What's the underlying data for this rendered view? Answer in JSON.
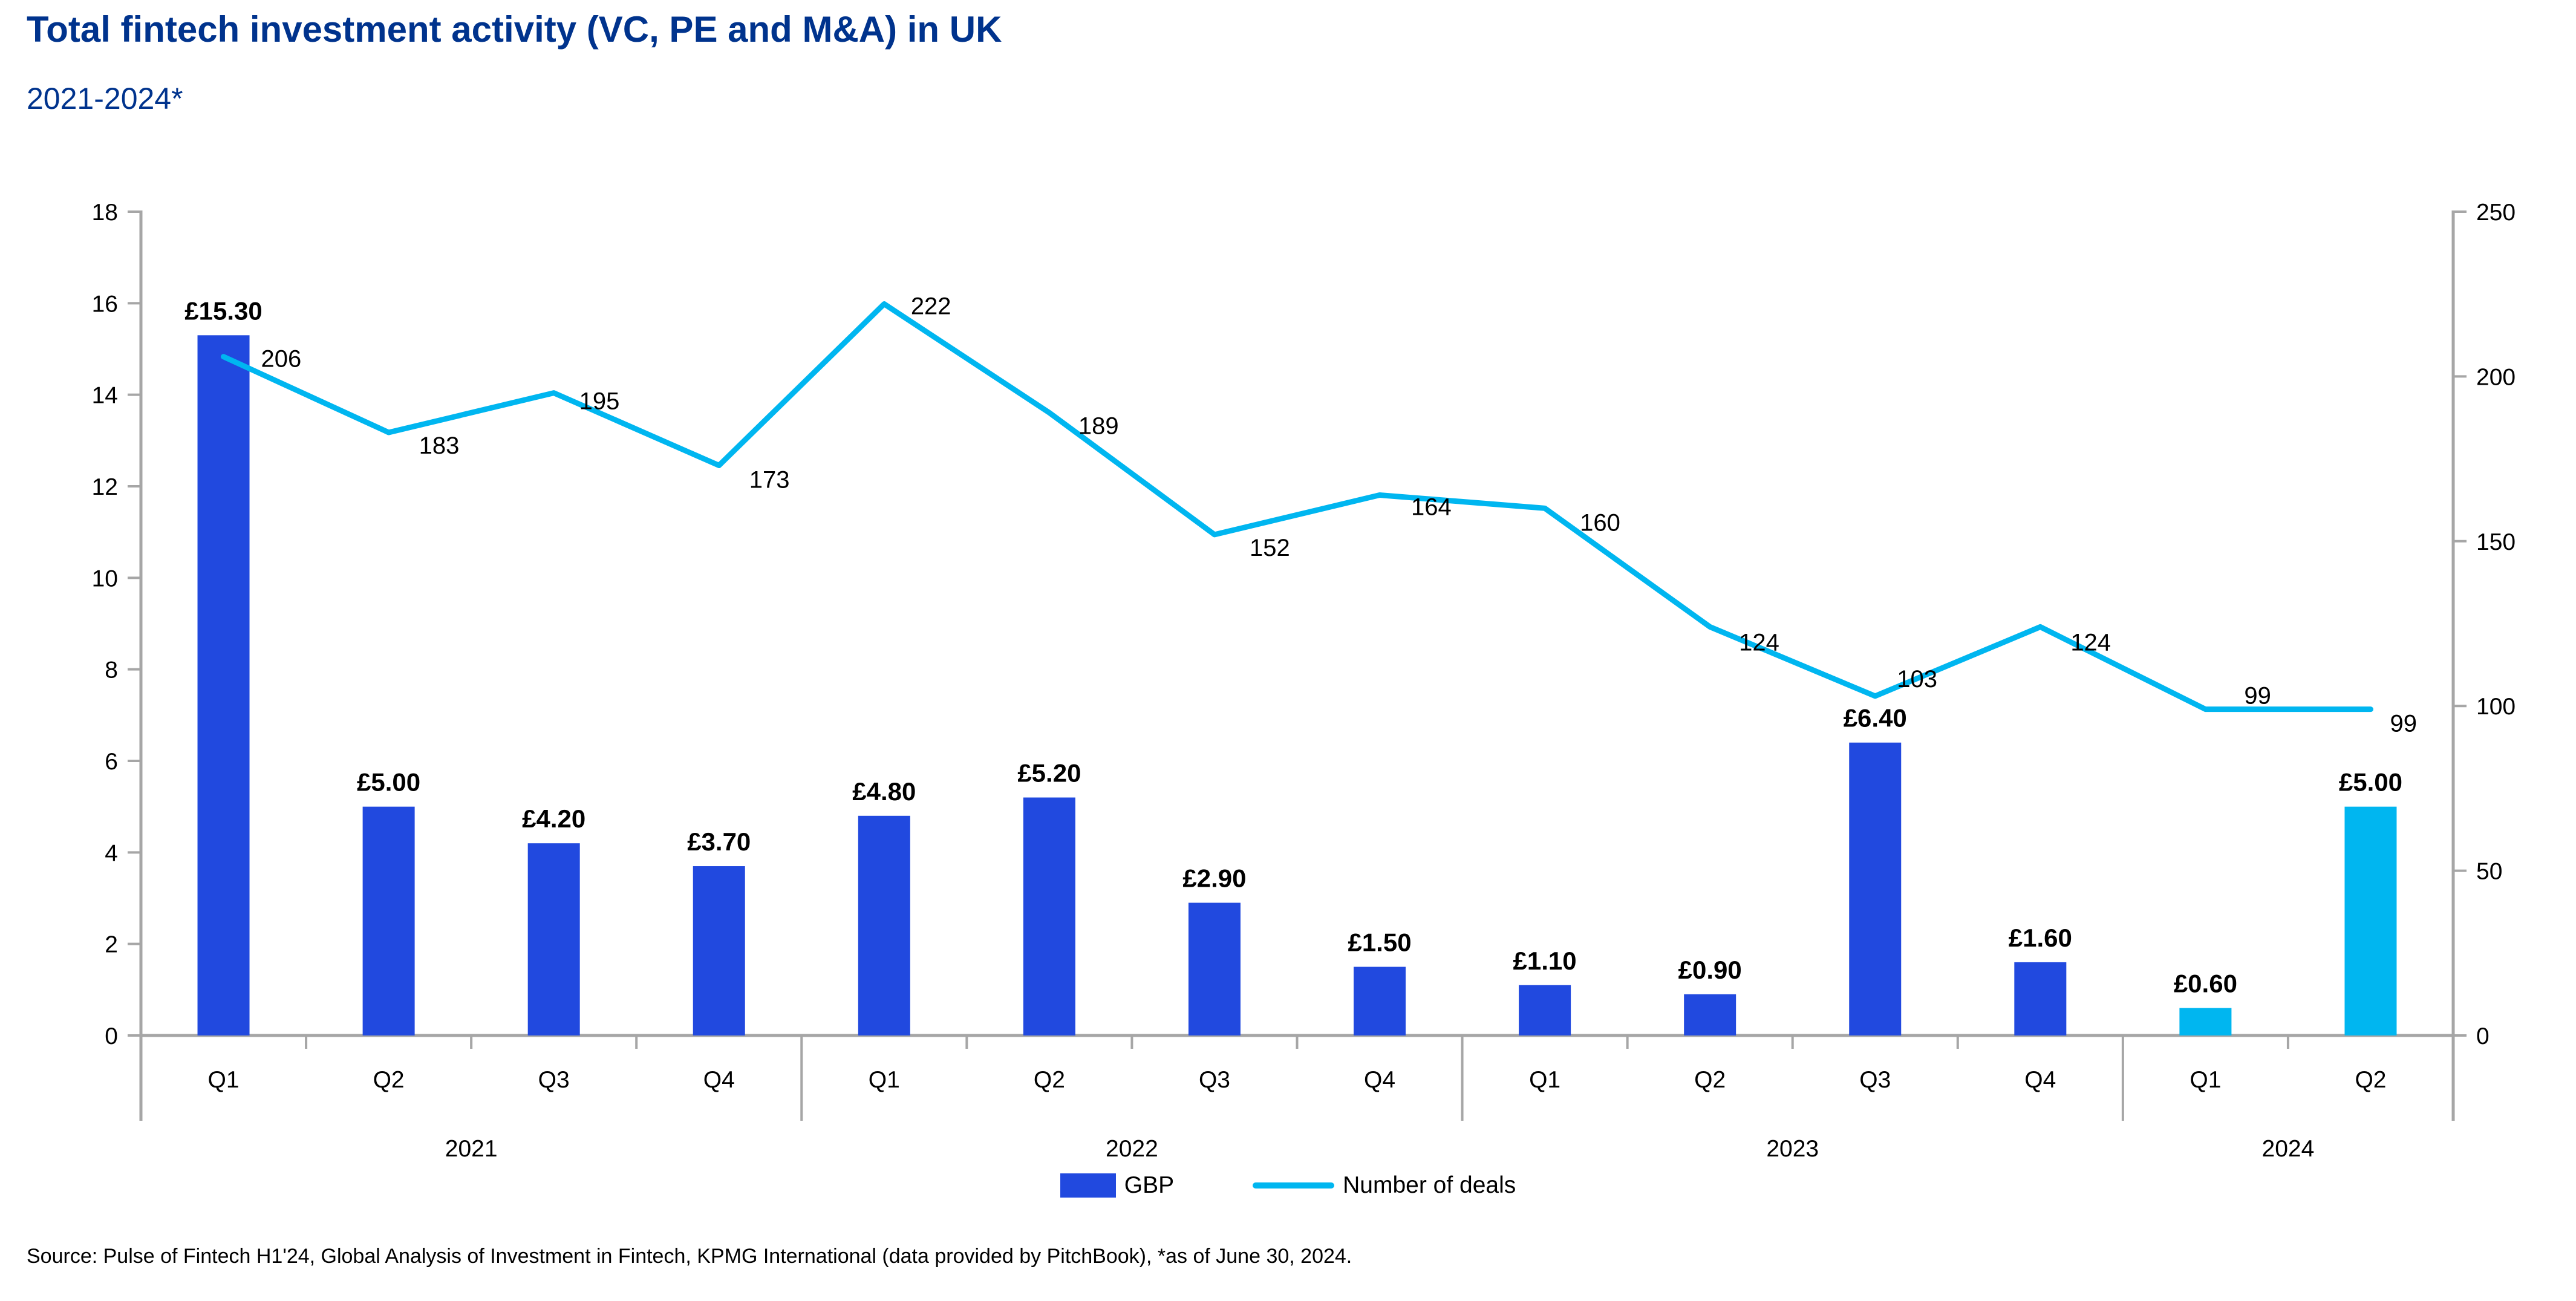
{
  "header": {
    "title": "Total fintech investment activity (VC, PE and M&A) in UK",
    "subtitle": "2021-2024*"
  },
  "legend": {
    "gbp_label": "GBP",
    "deals_label": "Number of deals"
  },
  "source": "Source: Pulse of Fintech H1'24, Global Analysis of Investment in Fintech, KPMG International (data provided by PitchBook), *as of June 30, 2024.",
  "colors": {
    "bar_blue": "#2149DF",
    "bar_highlight_cyan": "#00B6F0",
    "line_cyan": "#00B6F0",
    "title_blue": "#00338D",
    "axis_gray": "#A6A6A6",
    "text_black": "#000000"
  },
  "chart_data": {
    "type": "bar+line",
    "title": "Total fintech investment activity (VC, PE and M&A) in UK",
    "subtitle": "2021-2024*",
    "categories": [
      "Q1",
      "Q2",
      "Q3",
      "Q4",
      "Q1",
      "Q2",
      "Q3",
      "Q4",
      "Q1",
      "Q2",
      "Q3",
      "Q4",
      "Q1",
      "Q2"
    ],
    "year_groups": [
      {
        "label": "2021",
        "quarters": 4
      },
      {
        "label": "2022",
        "quarters": 4
      },
      {
        "label": "2023",
        "quarters": 4
      },
      {
        "label": "2024",
        "quarters": 2
      }
    ],
    "series": [
      {
        "name": "GBP",
        "type": "bar",
        "axis": "left",
        "values": [
          15.3,
          5.0,
          4.2,
          3.7,
          4.8,
          5.2,
          2.9,
          1.5,
          1.1,
          0.9,
          6.4,
          1.6,
          0.6,
          5.0
        ],
        "labels": [
          "£15.30",
          "£5.00",
          "£4.20",
          "£3.70",
          "£4.80",
          "£5.20",
          "£2.90",
          "£1.50",
          "£1.10",
          "£0.90",
          "£6.40",
          "£1.60",
          "£0.60",
          "£5.00"
        ],
        "highlight_from_index": 12
      },
      {
        "name": "Number of deals",
        "type": "line",
        "axis": "right",
        "values": [
          206,
          183,
          195,
          173,
          222,
          189,
          152,
          164,
          160,
          124,
          103,
          124,
          99,
          99
        ],
        "labels": [
          "206",
          "183",
          "195",
          "173",
          "222",
          "189",
          "152",
          "164",
          "160",
          "124",
          "103",
          "124",
          "99",
          "99"
        ]
      }
    ],
    "left_axis": {
      "min": 0,
      "max": 18,
      "step": 2,
      "ticks": [
        0,
        2,
        4,
        6,
        8,
        10,
        12,
        14,
        16,
        18
      ]
    },
    "right_axis": {
      "min": 0,
      "max": 250,
      "step": 50,
      "ticks": [
        0,
        50,
        100,
        150,
        200,
        250
      ]
    },
    "grid": false,
    "legend_position": "bottom-center"
  }
}
